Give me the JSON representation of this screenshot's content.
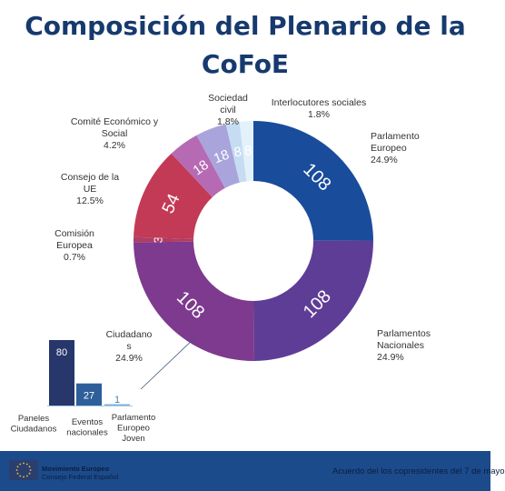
{
  "title": {
    "line1": "Composición del Plenario de la",
    "line2": "CoFoE"
  },
  "chart_data": [
    {
      "type": "pie",
      "title": "Composición del Plenario de la CoFoE",
      "slices": [
        {
          "id": "pe",
          "label_lines": [
            "Parlamento",
            "Europeo"
          ],
          "value": 108,
          "value_label": "108",
          "percent": "24.9%",
          "color": "#1a4c9c"
        },
        {
          "id": "pn",
          "label_lines": [
            "Parlamentos",
            "Nacionales"
          ],
          "value": 108,
          "value_label": "108",
          "percent": "24.9%",
          "color": "#5e3d96"
        },
        {
          "id": "ciu",
          "label_lines": [
            "Ciudadano",
            "s"
          ],
          "value": 108,
          "value_label": "108",
          "percent": "24.9%",
          "color": "#7d3a8e"
        },
        {
          "id": "com",
          "label_lines": [
            "Comisión",
            "Europea"
          ],
          "value": 3,
          "value_label": "3",
          "percent": "0.7%",
          "color": "#ae3d67"
        },
        {
          "id": "cue",
          "label_lines": [
            "Consejo de la",
            "UE"
          ],
          "value": 54,
          "value_label": "54",
          "percent": "12.5%",
          "color": "#c23a55"
        },
        {
          "id": "ces",
          "label_lines": [
            "Comité Económico y",
            "Social"
          ],
          "value": 18,
          "value_label": "18",
          "percent": "4.2%",
          "color": "#b66ab3"
        },
        {
          "id": "cdr",
          "label_lines": [],
          "value": 18,
          "value_label": "18",
          "percent": "",
          "color": "#a9a4db"
        },
        {
          "id": "soc",
          "label_lines": [
            "Sociedad",
            "civil"
          ],
          "value": 8,
          "value_label": "8",
          "percent": "1.8%",
          "color": "#c6dcf3"
        },
        {
          "id": "int",
          "label_lines": [
            "Interlocutores sociales"
          ],
          "value": 8,
          "value_label": "8",
          "percent": "1.8%",
          "color": "#e3f1fb"
        }
      ]
    },
    {
      "type": "bar",
      "categories": [
        [
          "Paneles",
          "Ciudadanos"
        ],
        [
          "Eventos",
          "nacionales"
        ],
        [
          "Parlamento",
          "Europeo",
          "Joven"
        ]
      ],
      "values": [
        80,
        27,
        1
      ],
      "value_labels": [
        "80",
        "27",
        "1"
      ],
      "colors": [
        "#27366b",
        "#2d5f9a",
        "#7fb0dc"
      ]
    }
  ],
  "footer": {
    "brand_line1": "Movimiento Europeo",
    "brand_line2": "Consejo Federal Español",
    "note": "Acuerdo del los copresidentes del 7 de mayo"
  },
  "colors": {
    "title": "#163a6e",
    "footer_bg": "#1c4b8b",
    "footer_text": "#0b1e3f",
    "connector": "#3a5a80"
  }
}
